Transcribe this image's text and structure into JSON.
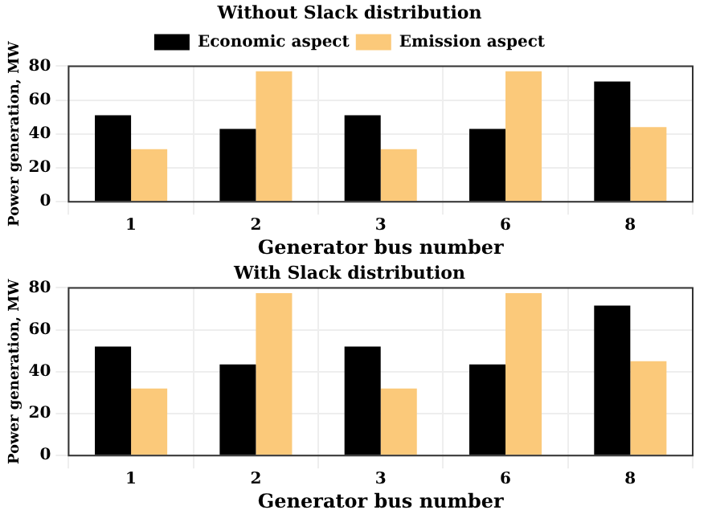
{
  "chart_data": [
    {
      "type": "bar",
      "title": "Without Slack distribution",
      "xlabel": "Generator bus number",
      "ylabel": "Power generation, MW",
      "categories": [
        "1",
        "2",
        "3",
        "6",
        "8"
      ],
      "series": [
        {
          "name": "Economic aspect",
          "color": "#000000",
          "values": [
            51,
            43,
            51,
            43,
            71
          ]
        },
        {
          "name": "Emission aspect",
          "color": "#fbc97a",
          "values": [
            31,
            77,
            31,
            77,
            44
          ]
        }
      ],
      "ylim": [
        0,
        80
      ],
      "yticks": [
        0,
        20,
        40,
        60,
        80
      ],
      "grid": true,
      "legend": "top"
    },
    {
      "type": "bar",
      "title": "With Slack distribution",
      "xlabel": "Generator bus number",
      "ylabel": "Power generation, MW",
      "categories": [
        "1",
        "2",
        "3",
        "6",
        "8"
      ],
      "series": [
        {
          "color": "#000000",
          "values": [
            52,
            43.5,
            52,
            43.5,
            71.5
          ]
        },
        {
          "color": "#fbc97a",
          "values": [
            32,
            77.5,
            32,
            77.5,
            45
          ]
        }
      ],
      "ylim": [
        0,
        80
      ],
      "yticks": [
        0,
        20,
        40,
        60,
        80
      ],
      "grid": true
    }
  ]
}
